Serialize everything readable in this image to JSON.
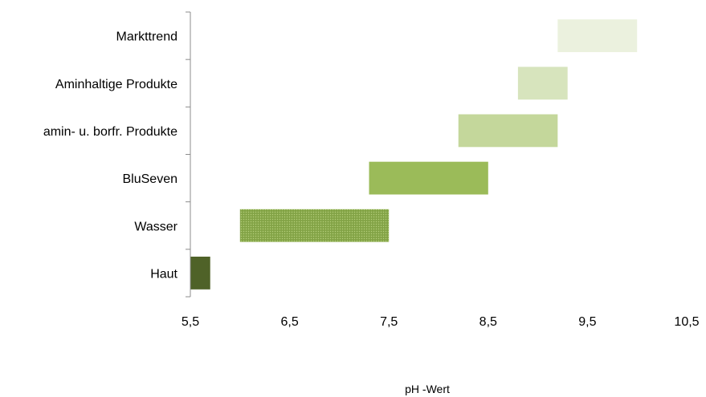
{
  "chart_data": {
    "type": "bar",
    "orientation": "horizontal-range",
    "title": "",
    "xlabel": "pH -Wert",
    "ylabel": "",
    "xlim": [
      5.5,
      10.5
    ],
    "xticks": [
      5.5,
      6.5,
      7.5,
      8.5,
      9.5,
      10.5
    ],
    "xtick_labels": [
      "5,5",
      "6,5",
      "7,5",
      "8,5",
      "9,5",
      "10,5"
    ],
    "grid": false,
    "legend": "none",
    "categories": [
      "Markttrend",
      "Aminhaltige Produkte",
      "amin- u. borfr. Produkte",
      "BluSeven",
      "Wasser",
      "Haut"
    ],
    "ranges": [
      {
        "start": 9.2,
        "end": 10.0,
        "color": "#ebf1de"
      },
      {
        "start": 8.8,
        "end": 9.3,
        "color": "#d7e4bd"
      },
      {
        "start": 8.2,
        "end": 9.2,
        "color": "#c4d79b"
      },
      {
        "start": 7.3,
        "end": 8.5,
        "color": "#9bbb59"
      },
      {
        "start": 6.0,
        "end": 7.5,
        "color": "#8aab4c",
        "pattern": "dotted"
      },
      {
        "start": 5.5,
        "end": 5.7,
        "color": "#4f6228"
      }
    ]
  }
}
